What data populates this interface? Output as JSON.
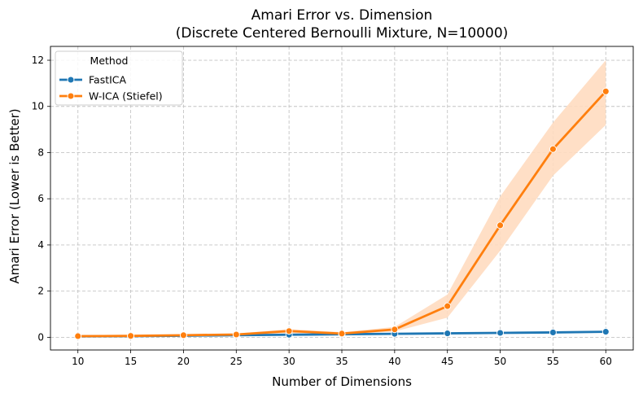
{
  "chart_data": {
    "type": "line",
    "title_line1": "Amari Error vs. Dimension",
    "title_line2": "(Discrete Centered Bernoulli Mixture, N=10000)",
    "xlabel": "Number of Dimensions",
    "ylabel": "Amari Error (Lower is Better)",
    "x": [
      10,
      15,
      20,
      25,
      30,
      35,
      40,
      45,
      50,
      55,
      60
    ],
    "x_ticks": [
      10,
      15,
      20,
      25,
      30,
      35,
      40,
      45,
      50,
      55,
      60
    ],
    "y_ticks": [
      0,
      2,
      4,
      6,
      8,
      10,
      12
    ],
    "xlim": [
      7.4,
      62.6
    ],
    "ylim": [
      -0.55,
      12.6
    ],
    "grid": true,
    "legend_title": "Method",
    "legend_position": "top-left",
    "series": [
      {
        "name": "FastICA",
        "color": "#1f77b4",
        "values": [
          0.04,
          0.05,
          0.07,
          0.09,
          0.11,
          0.13,
          0.15,
          0.17,
          0.19,
          0.21,
          0.24
        ],
        "ci_low": [
          0.03,
          0.04,
          0.06,
          0.08,
          0.1,
          0.12,
          0.14,
          0.16,
          0.18,
          0.2,
          0.22
        ],
        "ci_high": [
          0.05,
          0.06,
          0.08,
          0.1,
          0.12,
          0.14,
          0.16,
          0.18,
          0.2,
          0.22,
          0.26
        ]
      },
      {
        "name": "W-ICA (Stiefel)",
        "color": "#ff7f0e",
        "fill_color": "#ffdcc0",
        "values": [
          0.05,
          0.06,
          0.09,
          0.12,
          0.27,
          0.16,
          0.34,
          1.35,
          4.85,
          8.15,
          10.65
        ],
        "ci_low": [
          0.03,
          0.04,
          0.06,
          0.08,
          0.18,
          0.12,
          0.25,
          0.85,
          3.75,
          7.0,
          9.2
        ],
        "ci_high": [
          0.07,
          0.08,
          0.12,
          0.16,
          0.36,
          0.22,
          0.45,
          1.85,
          6.1,
          9.3,
          12.0
        ]
      }
    ]
  }
}
